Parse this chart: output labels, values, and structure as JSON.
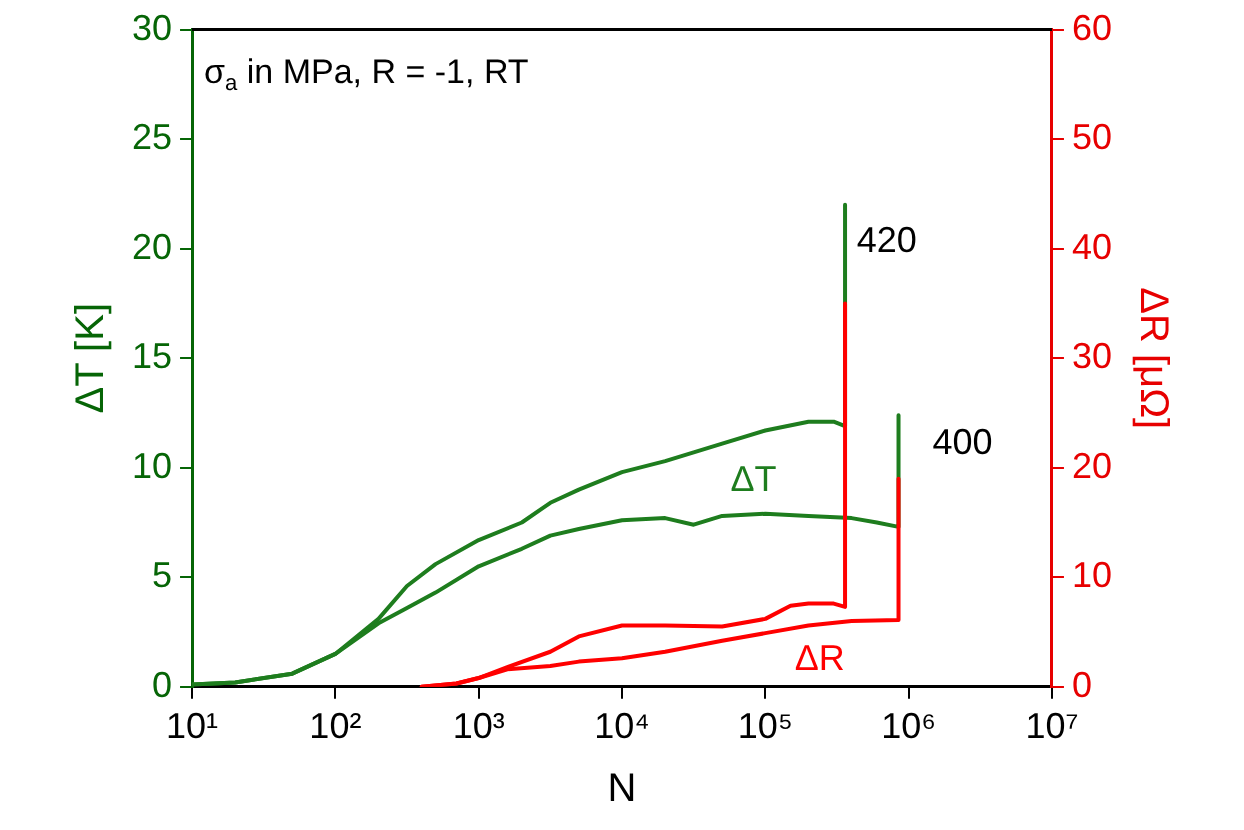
{
  "chart_data": {
    "type": "line",
    "xlabel": "N",
    "ylabel": "ΔT [K]",
    "y2label": "ΔR [μΩ]",
    "log": "x",
    "grid": false,
    "legend": false,
    "marker": "none",
    "line_style": "solid",
    "xlim": [
      10,
      10000000
    ],
    "xticks": [
      {
        "value": 10,
        "label": "10¹"
      },
      {
        "value": 100,
        "label": "10²"
      },
      {
        "value": 1000,
        "label": "10³"
      },
      {
        "value": 10000,
        "label": "10⁴"
      },
      {
        "value": 100000,
        "label": "10⁵"
      },
      {
        "value": 1000000,
        "label": "10⁶"
      },
      {
        "value": 10000000,
        "label": "10⁷"
      }
    ],
    "ylim": [
      0,
      30
    ],
    "yticks": [
      0,
      5,
      10,
      15,
      20,
      25,
      30
    ],
    "y2lim": [
      0,
      60
    ],
    "y2ticks": [
      0,
      10,
      20,
      30,
      40,
      50,
      60
    ],
    "series": [
      {
        "color": "#1e7d1e",
        "x": [
          10,
          20,
          50,
          100,
          200,
          316,
          500,
          1000,
          2000,
          3162,
          5000,
          10000,
          20000,
          31623,
          50000,
          100000,
          200000,
          300000,
          360000,
          360000
        ],
        "values": [
          0.1,
          0.2,
          0.6,
          1.5,
          3.1,
          4.6,
          5.6,
          6.7,
          7.5,
          8.4,
          9.0,
          9.8,
          10.3,
          10.7,
          11.1,
          11.7,
          12.1,
          12.1,
          11.9,
          22
        ]
      },
      {
        "color": "#1e7d1e",
        "x": [
          10,
          20,
          50,
          100,
          200,
          316,
          500,
          1000,
          2000,
          3162,
          5000,
          10000,
          20000,
          31623,
          50000,
          100000,
          200000,
          400000,
          600000,
          850000,
          850000
        ],
        "values": [
          0.1,
          0.2,
          0.6,
          1.5,
          2.9,
          3.6,
          4.3,
          5.5,
          6.3,
          6.9,
          7.2,
          7.6,
          7.7,
          7.4,
          7.8,
          7.9,
          7.8,
          7.7,
          7.5,
          7.3,
          12.4
        ]
      },
      {
        "color": "#ff0000",
        "axis": "y2",
        "x": [
          400,
          700,
          1000,
          1585,
          3162,
          5000,
          10000,
          20000,
          50000,
          100000,
          150000,
          200000,
          300000,
          360000,
          360000
        ],
        "values": [
          0,
          0.3,
          0.8,
          1.8,
          3.2,
          4.6,
          5.6,
          5.6,
          5.5,
          6.2,
          7.4,
          7.6,
          7.6,
          7.3,
          35
        ]
      },
      {
        "color": "#ff0000",
        "axis": "y2",
        "x": [
          400,
          700,
          1000,
          1585,
          3162,
          5000,
          10000,
          20000,
          50000,
          100000,
          200000,
          400000,
          850000,
          850000
        ],
        "values": [
          0,
          0.3,
          0.8,
          1.6,
          1.9,
          2.3,
          2.6,
          3.2,
          4.2,
          4.9,
          5.6,
          6.0,
          6.1,
          19
        ]
      }
    ],
    "annotations": [
      "σ$_{a}$ in MPa, R = -1, RT",
      "420",
      "400",
      "ΔT",
      "ΔR"
    ]
  }
}
